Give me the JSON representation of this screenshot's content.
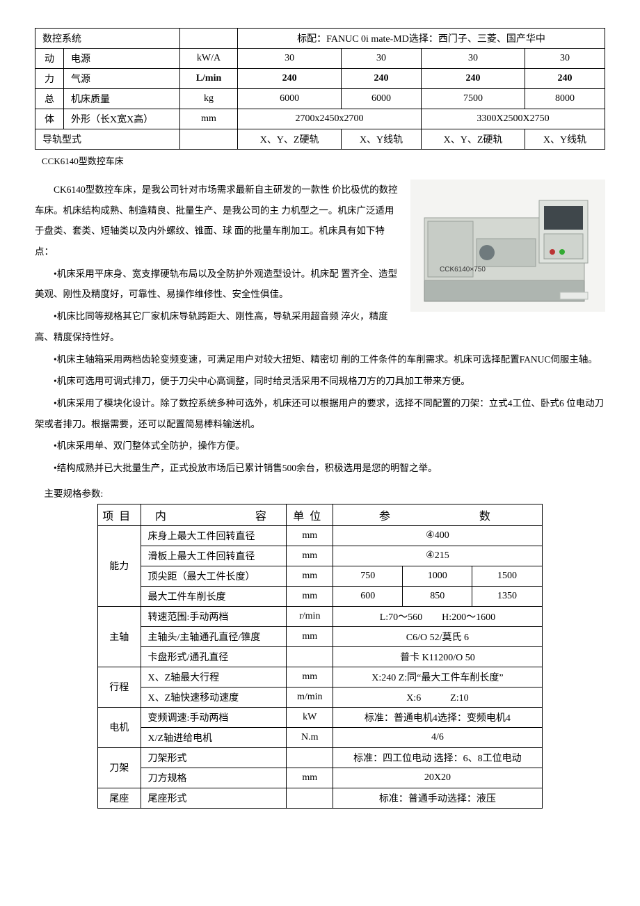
{
  "topTable": {
    "rows": [
      {
        "c0": "数控系统",
        "c1": "",
        "c2": "标配：FANUC 0i mate-MD选择：西门子、三菱、国产华中",
        "span": 4
      },
      {
        "cat": "动",
        "c0": "电源",
        "c1": "kW/A",
        "v": [
          "30",
          "30",
          "30",
          "30"
        ]
      },
      {
        "cat": "力",
        "c0": "气源",
        "c1": "L/min",
        "v": [
          "240",
          "240",
          "240",
          "240"
        ],
        "bold": true
      },
      {
        "cat": "总",
        "c0": "机床质量",
        "c1": "kg",
        "v": [
          "6000",
          "6000",
          "7500",
          "8000"
        ]
      },
      {
        "cat": "体",
        "c0": "外形（长X宽X高）",
        "c1": "mm",
        "v2": [
          "2700x2450x2700",
          "3300X2500X2750"
        ]
      },
      {
        "c0": "导轨型式",
        "c1": "",
        "v": [
          "X、Y、Z硬轨",
          "X、Y线轨",
          "X、Y、Z硬轨",
          "X、Y线轨"
        ]
      }
    ]
  },
  "subtitle": "CCK6140型数控车床",
  "intro": {
    "p1": "CK6140型数控车床，是我公司针对市场需求最新自主研发的一款性  价比极优的数控车床。机床结构成熟、制造精良、批量生产、是我公司的主  力机型之一。机床广泛适用于盘类、套类、短轴类以及内外螺纹、锥面、球  面的批量车削加工。机床具有如下特点："
  },
  "bullets": [
    "•机床采用平床身、宽支撑硬轨布局以及全防护外观造型设计。机床配  置齐全、造型美观、刚性及精度好，可靠性、易操作维修性、安全性俱佳。",
    "•机床比同等规格其它厂家机床导轨跨距大、刚性高，导轨采用超音频  淬火，精度高、精度保持性好。",
    "•机床主轴箱采用两档齿轮变频变速，可满足用户对较大扭矩、精密切  削的工件条件的车削需求。机床可选择配置FANUC伺服主轴。",
    "•机床可选用可调式排刀，便于刀尖中心高调整，同时给灵活采用不同规格刀方的刀具加工带来方便。",
    "•机床采用了模块化设计。除了数控系统多种可选外，机床还可以根据用户的要求，选择不同配置的刀架：立式4工位、卧式6 位电动刀架或者排刀。根据需要，还可以配置简易棒料输送机。",
    "•机床采用单、双门整体式全防护，操作方便。",
    "•结构成熟并已大批量生产，正式投放市场后已累计销售500余台，积极选用是您的明智之举。"
  ],
  "specTitle": "主要规格参数:",
  "spec": {
    "headers": [
      "项目",
      "内　　　　　容",
      "单位",
      "参　　　　　数"
    ],
    "groups": [
      {
        "cat": "能力",
        "rows": [
          {
            "n": "床身上最大工件回转直径",
            "u": "mm",
            "v": "④400",
            "span": 3
          },
          {
            "n": "滑板上最大工件回转直径",
            "u": "mm",
            "v": "④215",
            "span": 3
          },
          {
            "n": "顶尖距（最大工件长度）",
            "u": "mm",
            "vs": [
              "750",
              "1000",
              "1500"
            ]
          },
          {
            "n": "最大工件车削长度",
            "u": "mm",
            "vs": [
              "600",
              "850",
              "1350"
            ]
          }
        ]
      },
      {
        "cat": "主轴",
        "rows": [
          {
            "n": "转速范围:手动两档",
            "u": "r/min",
            "v": "L:70〜560　　H:200〜1600",
            "span": 3
          },
          {
            "n": "主轴头/主轴通孔直径/锥度",
            "u": "mm",
            "v": "C6/O 52/莫氏 6",
            "span": 3
          },
          {
            "n": "卡盘形式/通孔直径",
            "u": "",
            "v": "普卡 K11200/O 50",
            "span": 3
          }
        ]
      },
      {
        "cat": "行程",
        "rows": [
          {
            "n": "X、Z轴最大行程",
            "u": "mm",
            "v": "X:240 Z:同“最大工件车削长度”",
            "span": 3
          },
          {
            "n": "X、Z轴快速移动速度",
            "u": "m/min",
            "v": "X:6　　　Z:10",
            "span": 3
          }
        ]
      },
      {
        "cat": "电机",
        "rows": [
          {
            "n": "变频调速:手动两档",
            "u": "kW",
            "v": "标准：普通电机4选择：变频电机4",
            "span": 3
          },
          {
            "n": "X/Z轴进给电机",
            "u": "N.m",
            "v": "4/6",
            "span": 3
          }
        ]
      },
      {
        "cat": "刀架",
        "rows": [
          {
            "n": "刀架形式",
            "u": "",
            "v": "标准：四工位电动 选择：6、8工位电动",
            "span": 3
          },
          {
            "n": "刀方规格",
            "u": "mm",
            "v": "20X20",
            "span": 3
          }
        ]
      },
      {
        "cat": "尾座",
        "rows": [
          {
            "n": "尾座形式",
            "u": "",
            "v": "标准：普通手动选择：液压",
            "span": 3
          }
        ]
      }
    ]
  },
  "imageLabel": "CCK6140×750",
  "colors": {
    "border": "#000000",
    "bg": "#ffffff",
    "machineBody": "#d4d8d2",
    "machineDark": "#4a5458",
    "machineBase": "#aeb5b0"
  }
}
